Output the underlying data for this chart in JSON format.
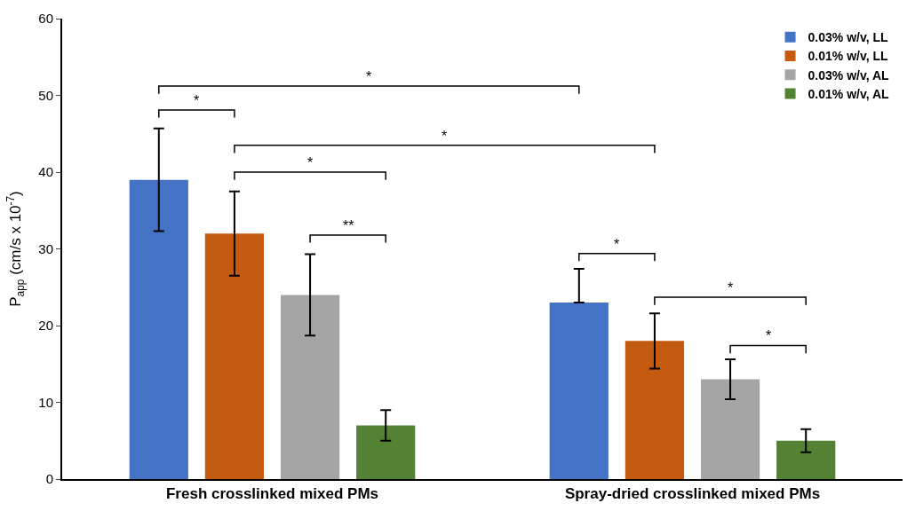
{
  "chart_data": {
    "type": "bar",
    "categories": [
      "Fresh crosslinked mixed PMs",
      "Spray-dried crosslinked mixed PMs"
    ],
    "ylabel": "P$_{app}$ (cm/s x 10$^{-7}$)",
    "series": [
      {
        "name": "0.03% w/v, LL",
        "color": "#4472c4",
        "values": [
          39,
          23
        ],
        "errors": [
          6.7,
          [
            23,
            27.4
          ]
        ]
      },
      {
        "name": "0.01% w/v, LL",
        "color": "#c55a11",
        "values": [
          32,
          18
        ],
        "errors": [
          5.5,
          3.6
        ]
      },
      {
        "name": "0.03% w/v, AL",
        "color": "#a5a5a5",
        "values": [
          24,
          13
        ],
        "errors": [
          5.3,
          2.6
        ]
      },
      {
        "name": "0.01% w/v, AL",
        "color": "#548235",
        "values": [
          7,
          5
        ],
        "errors": [
          2,
          1.5
        ]
      }
    ],
    "ylim": [
      0,
      60
    ],
    "yticks": [
      0,
      10,
      20,
      30,
      40,
      50,
      60
    ],
    "legend": "top right",
    "annotations": [
      "*",
      "*",
      "*",
      "*",
      "**",
      "*",
      "*",
      "*"
    ]
  }
}
